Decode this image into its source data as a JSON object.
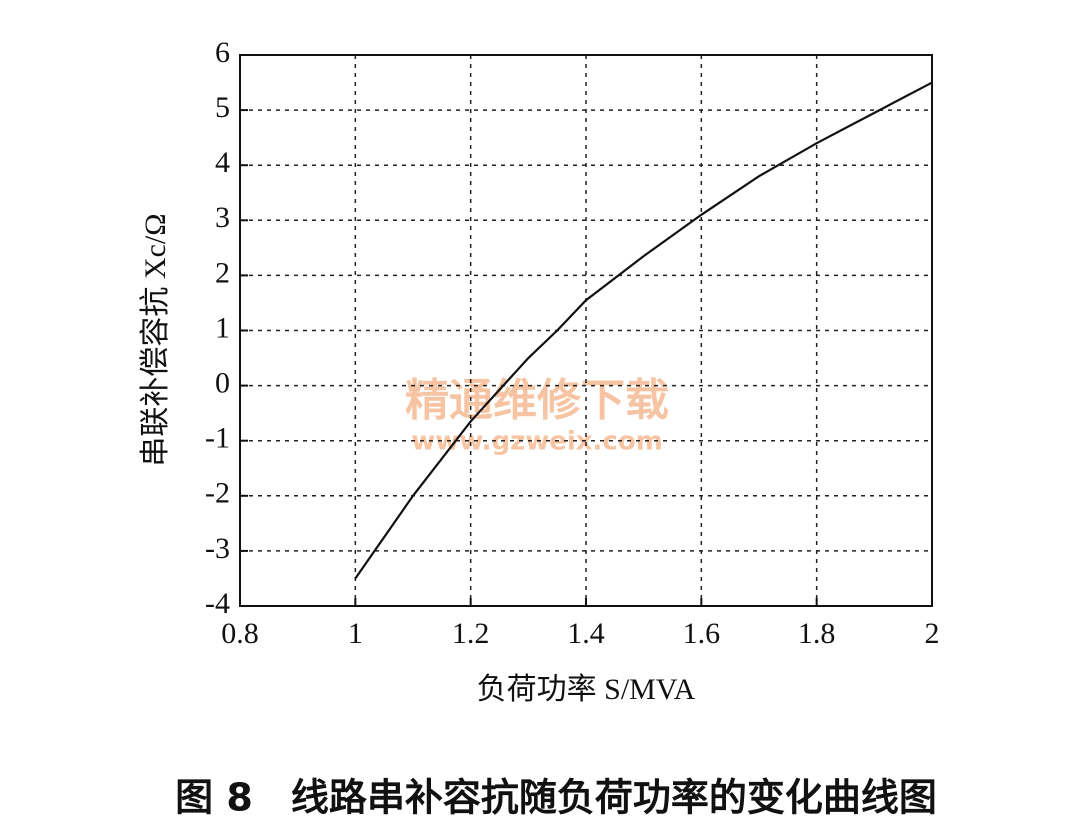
{
  "chart_data": {
    "type": "line",
    "x_label": "负荷功率 S/MVA",
    "y_label": "串联补偿容抗 Xc/Ω",
    "caption": "图 8　线路串补容抗随负荷功率的变化曲线图",
    "watermark": "精通维修下载",
    "watermark_url": "www.gzweix.com",
    "x": [
      1.0,
      1.1,
      1.2,
      1.3,
      1.35,
      1.4,
      1.5,
      1.6,
      1.7,
      1.8,
      1.9,
      2.0
    ],
    "values": [
      -3.5,
      -2.0,
      -0.65,
      0.5,
      1.0,
      1.55,
      2.35,
      3.1,
      3.8,
      4.4,
      4.95,
      5.5
    ],
    "color": "#111111",
    "xlim": [
      0.8,
      2
    ],
    "ylim": [
      -4,
      6
    ],
    "xticks": [
      0.8,
      1,
      1.2,
      1.4,
      1.6,
      1.8,
      2
    ],
    "yticks": [
      -4,
      -3,
      -2,
      -1,
      0,
      1,
      2,
      3,
      4,
      5,
      6
    ],
    "grid": true
  }
}
